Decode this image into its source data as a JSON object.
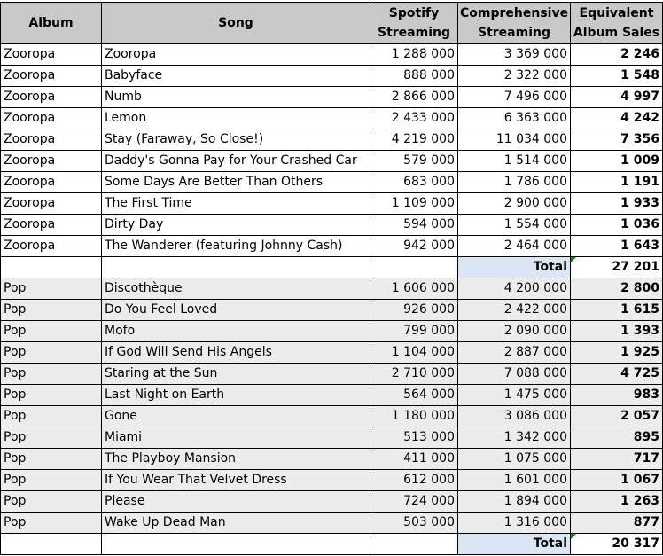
{
  "headers": {
    "album": "Album",
    "song": "Song",
    "spotify": "Spotify\nStreaming",
    "comprehensive": "Comprehensive\nStreaming",
    "equivalent": "Equivalent\nAlbum Sales"
  },
  "groups": [
    {
      "rows": [
        {
          "album": "Zooropa",
          "song": "Zooropa",
          "spotify": "1 288 000",
          "comprehensive": "3 369 000",
          "eas": "2 246"
        },
        {
          "album": "Zooropa",
          "song": "Babyface",
          "spotify": "888 000",
          "comprehensive": "2 322 000",
          "eas": "1 548"
        },
        {
          "album": "Zooropa",
          "song": "Numb",
          "spotify": "2 866 000",
          "comprehensive": "7 496 000",
          "eas": "4 997"
        },
        {
          "album": "Zooropa",
          "song": "Lemon",
          "spotify": "2 433 000",
          "comprehensive": "6 363 000",
          "eas": "4 242"
        },
        {
          "album": "Zooropa",
          "song": "Stay (Faraway, So Close!)",
          "spotify": "4 219 000",
          "comprehensive": "11 034 000",
          "eas": "7 356"
        },
        {
          "album": "Zooropa",
          "song": "Daddy's Gonna Pay for Your Crashed Car",
          "spotify": "579 000",
          "comprehensive": "1 514 000",
          "eas": "1 009"
        },
        {
          "album": "Zooropa",
          "song": "Some Days Are Better Than Others",
          "spotify": "683 000",
          "comprehensive": "1 786 000",
          "eas": "1 191"
        },
        {
          "album": "Zooropa",
          "song": "The First Time",
          "spotify": "1 109 000",
          "comprehensive": "2 900 000",
          "eas": "1 933"
        },
        {
          "album": "Zooropa",
          "song": "Dirty Day",
          "spotify": "594 000",
          "comprehensive": "1 554 000",
          "eas": "1 036"
        },
        {
          "album": "Zooropa",
          "song": "The Wanderer (featuring Johnny Cash)",
          "spotify": "942 000",
          "comprehensive": "2 464 000",
          "eas": "1 643"
        }
      ],
      "total_label": "Total",
      "total_value": "27 201",
      "shaded": false
    },
    {
      "rows": [
        {
          "album": "Pop",
          "song": "Discothèque",
          "spotify": "1 606 000",
          "comprehensive": "4 200 000",
          "eas": "2 800"
        },
        {
          "album": "Pop",
          "song": "Do You Feel Loved",
          "spotify": "926 000",
          "comprehensive": "2 422 000",
          "eas": "1 615"
        },
        {
          "album": "Pop",
          "song": "Mofo",
          "spotify": "799 000",
          "comprehensive": "2 090 000",
          "eas": "1 393"
        },
        {
          "album": "Pop",
          "song": "If God Will Send His Angels",
          "spotify": "1 104 000",
          "comprehensive": "2 887 000",
          "eas": "1 925"
        },
        {
          "album": "Pop",
          "song": "Staring at the Sun",
          "spotify": "2 710 000",
          "comprehensive": "7 088 000",
          "eas": "4 725"
        },
        {
          "album": "Pop",
          "song": "Last Night on Earth",
          "spotify": "564 000",
          "comprehensive": "1 475 000",
          "eas": "983"
        },
        {
          "album": "Pop",
          "song": "Gone",
          "spotify": "1 180 000",
          "comprehensive": "3 086 000",
          "eas": "2 057"
        },
        {
          "album": "Pop",
          "song": "Miami",
          "spotify": "513 000",
          "comprehensive": "1 342 000",
          "eas": "895"
        },
        {
          "album": "Pop",
          "song": "The Playboy Mansion",
          "spotify": "411 000",
          "comprehensive": "1 075 000",
          "eas": "717"
        },
        {
          "album": "Pop",
          "song": "If You Wear That Velvet Dress",
          "spotify": "612 000",
          "comprehensive": "1 601 000",
          "eas": "1 067"
        },
        {
          "album": "Pop",
          "song": "Please",
          "spotify": "724 000",
          "comprehensive": "1 894 000",
          "eas": "1 263"
        },
        {
          "album": "Pop",
          "song": "Wake Up Dead Man",
          "spotify": "503 000",
          "comprehensive": "1 316 000",
          "eas": "877"
        }
      ],
      "total_label": "Total",
      "total_value": "20 317",
      "shaded": true
    }
  ]
}
